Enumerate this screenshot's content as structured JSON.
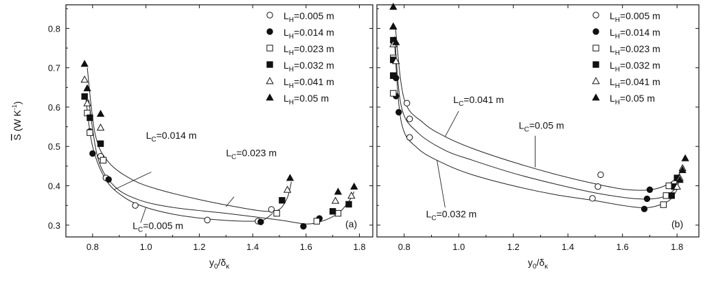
{
  "chart_data": [
    {
      "type": "scatter",
      "panel_label": "(a)",
      "xlabel_main": "y",
      "xlabel_sub": "0",
      "xlabel_rest": "/δ",
      "xlabel_sub2": "κ",
      "ylabel_main": "S",
      "ylabel_unit": "(W K",
      "ylabel_sup": "-1",
      "ylabel_close": ")",
      "xlim": [
        0.7,
        1.85
      ],
      "ylim": [
        0.27,
        0.86
      ],
      "xticks": [
        "0.8",
        "1.0",
        "1.2",
        "1.4",
        "1.6",
        "1.8"
      ],
      "yticks": [
        "0.3",
        "0.4",
        "0.5",
        "0.6",
        "0.7",
        "0.8"
      ],
      "legend": {
        "position": "top-right",
        "entries": [
          {
            "prefix": "L",
            "sub": "H",
            "text": "=0.005 m",
            "marker": "circle-open"
          },
          {
            "prefix": "L",
            "sub": "H",
            "text": "=0.014 m",
            "marker": "circle-filled"
          },
          {
            "prefix": "L",
            "sub": "H",
            "text": "=0.023 m",
            "marker": "square-open"
          },
          {
            "prefix": "L",
            "sub": "H",
            "text": "=0.032 m",
            "marker": "square-filled"
          },
          {
            "prefix": "L",
            "sub": "H",
            "text": "=0.041 m",
            "marker": "triangle-open"
          },
          {
            "prefix": "L",
            "sub": "H",
            "text": "=0.05 m",
            "marker": "triangle-filled"
          }
        ]
      },
      "series": [
        {
          "name": "L_H=0.005 m",
          "marker": "circle-open",
          "x": [
            0.83,
            0.85,
            0.96,
            1.23,
            1.42,
            1.47
          ],
          "y": [
            0.475,
            0.42,
            0.35,
            0.313,
            0.31,
            0.34
          ]
        },
        {
          "name": "L_H=0.014 m",
          "marker": "circle-filled",
          "x": [
            0.79,
            0.8,
            0.86,
            1.43,
            1.59,
            1.65
          ],
          "y": [
            0.538,
            0.482,
            0.416,
            0.308,
            0.297,
            0.317
          ]
        },
        {
          "name": "L_H=0.023 m",
          "marker": "square-open",
          "x": [
            0.78,
            0.79,
            0.84,
            1.49,
            1.64,
            1.72
          ],
          "y": [
            0.585,
            0.535,
            0.465,
            0.33,
            0.31,
            0.33
          ]
        },
        {
          "name": "L_H=0.032 m",
          "marker": "square-filled",
          "x": [
            0.77,
            0.79,
            0.83,
            1.51,
            1.7,
            1.76
          ],
          "y": [
            0.627,
            0.573,
            0.507,
            0.363,
            0.335,
            0.353
          ]
        },
        {
          "name": "L_H=0.041 m",
          "marker": "triangle-open",
          "x": [
            0.77,
            0.78,
            0.83,
            1.53,
            1.71,
            1.77
          ],
          "y": [
            0.67,
            0.61,
            0.548,
            0.39,
            0.362,
            0.375
          ]
        },
        {
          "name": "L_H=0.05 m",
          "marker": "triangle-filled",
          "x": [
            0.77,
            0.78,
            0.83,
            1.54,
            1.72,
            1.78
          ],
          "y": [
            0.71,
            0.648,
            0.583,
            0.42,
            0.385,
            0.398
          ]
        }
      ],
      "curves": [
        {
          "name": "L_C=0.005 m",
          "x": [
            0.775,
            0.8,
            0.85,
            0.92,
            1.0,
            1.1,
            1.2,
            1.3,
            1.4,
            1.44,
            1.475
          ],
          "y": [
            0.62,
            0.5,
            0.415,
            0.37,
            0.345,
            0.328,
            0.318,
            0.312,
            0.31,
            0.313,
            0.33
          ]
        },
        {
          "name": "L_C=0.014 m",
          "x": [
            0.78,
            0.81,
            0.86,
            0.95,
            1.05,
            1.2,
            1.35,
            1.45,
            1.5,
            1.53,
            1.545
          ],
          "y": [
            0.7,
            0.53,
            0.46,
            0.415,
            0.39,
            0.365,
            0.345,
            0.335,
            0.34,
            0.37,
            0.41
          ]
        },
        {
          "name": "L_C=0.023 m",
          "x": [
            0.785,
            0.82,
            0.88,
            0.97,
            1.1,
            1.3,
            1.5,
            1.6,
            1.66,
            1.72,
            1.76,
            1.78
          ],
          "y": [
            0.62,
            0.47,
            0.4,
            0.365,
            0.345,
            0.33,
            0.313,
            0.303,
            0.31,
            0.33,
            0.36,
            0.385
          ]
        }
      ],
      "annotations": [
        {
          "prefix": "L",
          "sub": "C",
          "text": "=0.014 m",
          "at": [
            1.0,
            0.52
          ],
          "leader_to": [
            0.88,
            0.39
          ],
          "leader_from": [
            1.02,
            0.435
          ]
        },
        {
          "prefix": "L",
          "sub": "C",
          "text": "=0.023 m",
          "at": [
            1.3,
            0.475
          ],
          "leader_to": [
            1.3,
            0.347
          ],
          "leader_from": [
            1.33,
            0.372
          ]
        },
        {
          "prefix": "L",
          "sub": "C",
          "text": "=0.005 m",
          "at": [
            0.95,
            0.29
          ],
          "leader_to": [
            1.0,
            0.345
          ],
          "leader_from": [
            0.98,
            0.306
          ]
        }
      ]
    },
    {
      "type": "scatter",
      "panel_label": "(b)",
      "xlabel_main": "y",
      "xlabel_sub": "0",
      "xlabel_rest": "/δ",
      "xlabel_sub2": "κ",
      "xlim": [
        0.7,
        1.88
      ],
      "ylim": [
        0.27,
        0.86
      ],
      "xticks": [
        "0.8",
        "1.0",
        "1.2",
        "1.4",
        "1.6",
        "1.8"
      ],
      "legend": {
        "position": "top-right",
        "entries": [
          {
            "prefix": "L",
            "sub": "H",
            "text": "=0.005 m",
            "marker": "circle-open"
          },
          {
            "prefix": "L",
            "sub": "H",
            "text": "=0.014 m",
            "marker": "circle-filled"
          },
          {
            "prefix": "L",
            "sub": "H",
            "text": "=0.023 m",
            "marker": "square-open"
          },
          {
            "prefix": "L",
            "sub": "H",
            "text": "=0.032 m",
            "marker": "square-filled"
          },
          {
            "prefix": "L",
            "sub": "H",
            "text": "=0.041 m",
            "marker": "triangle-open"
          },
          {
            "prefix": "L",
            "sub": "H",
            "text": "=0.05 m",
            "marker": "triangle-filled"
          }
        ]
      },
      "series": [
        {
          "name": "L_H=0.005 m",
          "marker": "circle-open",
          "x": [
            0.81,
            0.82,
            0.82,
            1.52,
            1.51,
            1.49
          ],
          "y": [
            0.61,
            0.57,
            0.523,
            0.428,
            0.398,
            0.368
          ]
        },
        {
          "name": "L_H=0.014 m",
          "marker": "circle-filled",
          "x": [
            0.77,
            0.77,
            0.78,
            1.7,
            1.69,
            1.68
          ],
          "y": [
            0.674,
            0.628,
            0.587,
            0.39,
            0.367,
            0.341
          ]
        },
        {
          "name": "L_H=0.023 m",
          "marker": "square-open",
          "x": [
            0.76,
            0.76,
            0.76,
            1.77,
            1.76,
            1.75
          ],
          "y": [
            0.725,
            0.68,
            0.635,
            0.4,
            0.375,
            0.352
          ]
        },
        {
          "name": "L_H=0.032 m",
          "marker": "square-filled",
          "x": [
            0.76,
            0.76,
            0.76,
            1.8,
            1.79,
            1.78
          ],
          "y": [
            0.77,
            0.72,
            0.68,
            0.42,
            0.398,
            0.375
          ]
        },
        {
          "name": "L_H=0.041 m",
          "marker": "triangle-open",
          "x": [
            0.76,
            0.76,
            0.77,
            1.82,
            1.81,
            1.8
          ],
          "y": [
            0.805,
            0.76,
            0.717,
            0.445,
            0.42,
            0.398
          ]
        },
        {
          "name": "L_H=0.05 m",
          "marker": "triangle-filled",
          "x": [
            0.76,
            0.76,
            0.77,
            1.83,
            1.82,
            1.81
          ],
          "y": [
            0.855,
            0.805,
            0.765,
            0.47,
            0.44,
            0.415
          ]
        }
      ],
      "curves": [
        {
          "name": "L_C=0.041 m",
          "x": [
            0.768,
            0.8,
            0.87,
            0.95,
            1.05,
            1.2,
            1.35,
            1.5,
            1.62,
            1.72,
            1.79,
            1.825
          ],
          "y": [
            0.8,
            0.62,
            0.56,
            0.525,
            0.495,
            0.46,
            0.43,
            0.405,
            0.39,
            0.392,
            0.415,
            0.45
          ]
        },
        {
          "name": "L_C=0.05 m",
          "x": [
            0.765,
            0.79,
            0.85,
            0.95,
            1.05,
            1.2,
            1.35,
            1.5,
            1.65,
            1.74,
            1.79,
            1.815
          ],
          "y": [
            0.78,
            0.6,
            0.535,
            0.49,
            0.465,
            0.432,
            0.405,
            0.382,
            0.367,
            0.37,
            0.39,
            0.42
          ]
        },
        {
          "name": "L_C=0.032 m",
          "x": [
            0.765,
            0.79,
            0.85,
            0.95,
            1.05,
            1.2,
            1.35,
            1.5,
            1.62,
            1.7,
            1.77,
            1.8
          ],
          "y": [
            0.76,
            0.56,
            0.495,
            0.455,
            0.428,
            0.4,
            0.378,
            0.362,
            0.348,
            0.345,
            0.362,
            0.39
          ]
        }
      ],
      "annotations": [
        {
          "prefix": "L",
          "sub": "C",
          "text": "=0.041 m",
          "at": [
            0.98,
            0.61
          ],
          "leader_to": [
            0.95,
            0.525
          ],
          "leader_from": [
            1.0,
            0.59
          ]
        },
        {
          "prefix": "L",
          "sub": "C",
          "text": "=0.05 m",
          "at": [
            1.22,
            0.545
          ],
          "leader_to": [
            1.28,
            0.447
          ],
          "leader_from": [
            1.28,
            0.527
          ]
        },
        {
          "prefix": "L",
          "sub": "C",
          "text": "=0.032 m",
          "at": [
            0.88,
            0.32
          ],
          "leader_to": [
            0.92,
            0.465
          ],
          "leader_from": [
            0.95,
            0.345
          ]
        }
      ]
    }
  ]
}
